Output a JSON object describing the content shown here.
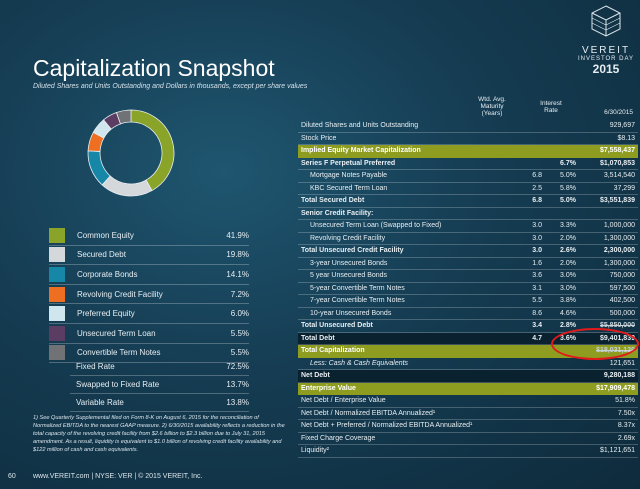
{
  "title": "Capitalization Snapshot",
  "subtitle": "Diluted Shares and Units Outstanding and Dollars in thousands, except per share values",
  "logo": {
    "name": "VEREIT",
    "sub": "INVESTOR DAY",
    "year": "2015"
  },
  "legend": [
    {
      "label": "Common Equity",
      "value": "41.9%",
      "color": "#8aa329",
      "pct": 41.9
    },
    {
      "label": "Secured Debt",
      "value": "19.8%",
      "color": "#d4d8db",
      "pct": 19.8
    },
    {
      "label": "Corporate Bonds",
      "value": "14.1%",
      "color": "#1787a8",
      "pct": 14.1
    },
    {
      "label": "Revolving Credit Facility",
      "value": "7.2%",
      "color": "#ee6f22",
      "pct": 7.2
    },
    {
      "label": "Preferred Equity",
      "value": "6.0%",
      "color": "#cfe6ef",
      "pct": 6.0
    },
    {
      "label": "Unsecured Term Loan",
      "value": "5.5%",
      "color": "#5b3c62",
      "pct": 5.5
    },
    {
      "label": "Convertible Term Notes",
      "value": "5.5%",
      "color": "#707275",
      "pct": 5.5
    }
  ],
  "rates": [
    {
      "label": "Fixed Rate",
      "value": "72.5%"
    },
    {
      "label": "Swapped to Fixed Rate",
      "value": "13.7%"
    },
    {
      "label": "Variable Rate",
      "value": "13.8%"
    }
  ],
  "footnote": "1) See Quarterly Supplemental filed on Form 8-K on August 6, 2015 for the reconciliation of Normalized EBITDA to the nearest GAAP measure. 2) 6/30/2015 availability reflects a reduction in the total capacity of the revolving credit facility from $2.6 billion to $2.3 billion due to July 31, 2015 amendment. As a result, liquidity is equivalent to $1.0 billion of revolving credit facility availability and $122 million of cash and cash equivalents.",
  "footer": {
    "page": "60",
    "text": "www.VEREIT.com  |  NYSE: VER  |  © 2015 VEREIT, Inc."
  },
  "headers": {
    "maturity": "Wtd. Avg. Maturity (Years)",
    "interest": "Interest Rate",
    "date": "6/30/2015"
  },
  "table": [
    {
      "label": "Diluted Shares and Units Outstanding",
      "m": "",
      "r": "",
      "v": "929,697",
      "cls": ""
    },
    {
      "label": "Stock Price",
      "m": "",
      "r": "",
      "v": "$8.13",
      "cls": ""
    },
    {
      "label": "Implied Equity Market Capitalization",
      "m": "",
      "r": "",
      "v": "$7,558,437",
      "cls": "hl"
    },
    {
      "label": "Series F Perpetual Preferred",
      "m": "",
      "r": "6.7%",
      "v": "$1,070,853",
      "cls": "b"
    },
    {
      "label": "Mortgage Notes Payable",
      "m": "6.8",
      "r": "5.0%",
      "v": "3,514,540",
      "cls": "ind"
    },
    {
      "label": "KBC Secured Term Loan",
      "m": "2.5",
      "r": "5.8%",
      "v": "37,299",
      "cls": "ind"
    },
    {
      "label": "Total Secured Debt",
      "m": "6.8",
      "r": "5.0%",
      "v": "$3,551,839",
      "cls": "b"
    },
    {
      "label": "Senior Credit Facility:",
      "m": "",
      "r": "",
      "v": "",
      "cls": "b"
    },
    {
      "label": "Unsecured Term Loan (Swapped to Fixed)",
      "m": "3.0",
      "r": "3.3%",
      "v": "1,000,000",
      "cls": "ind"
    },
    {
      "label": "Revolving Credit Facility",
      "m": "3.0",
      "r": "2.0%",
      "v": "1,300,000",
      "cls": "ind"
    },
    {
      "label": "Total Unsecured Credit Facility",
      "m": "3.0",
      "r": "2.6%",
      "v": "2,300,000",
      "cls": "b"
    },
    {
      "label": "3-year Unsecured Bonds",
      "m": "1.6",
      "r": "2.0%",
      "v": "1,300,000",
      "cls": "ind"
    },
    {
      "label": "5 year Unsecured Bonds",
      "m": "3.6",
      "r": "3.0%",
      "v": "750,000",
      "cls": "ind"
    },
    {
      "label": "5-year Convertible Term Notes",
      "m": "3.1",
      "r": "3.0%",
      "v": "597,500",
      "cls": "ind"
    },
    {
      "label": "7-year Convertible Term Notes",
      "m": "5.5",
      "r": "3.8%",
      "v": "402,500",
      "cls": "ind"
    },
    {
      "label": "10-year Unsecured Bonds",
      "m": "8.6",
      "r": "4.6%",
      "v": "500,000",
      "cls": "ind"
    },
    {
      "label": "Total Unsecured Debt",
      "m": "3.4",
      "r": "2.8%",
      "v": "$5,850,000",
      "cls": "b strikev"
    },
    {
      "label": "Total Debt",
      "m": "4.7",
      "r": "3.6%",
      "v": "$9,401,839",
      "cls": "b dk"
    },
    {
      "label": "Total Capitalization",
      "m": "",
      "r": "",
      "v": "$18,031,129",
      "cls": "hl strikev"
    },
    {
      "label": "Less: Cash & Cash Equivalents",
      "m": "",
      "r": "",
      "v": "121,651",
      "cls": "it"
    },
    {
      "label": "Net Debt",
      "m": "",
      "r": "",
      "v": "9,280,188",
      "cls": "b dk"
    },
    {
      "label": "Enterprise Value",
      "m": "",
      "r": "",
      "v": "$17,909,478",
      "cls": "hl"
    },
    {
      "label": "Net Debt / Enterprise Value",
      "m": "",
      "r": "",
      "v": "51.8%",
      "cls": ""
    },
    {
      "label": "Net Debt / Normalized EBITDA Annualized¹",
      "m": "",
      "r": "",
      "v": "7.50x",
      "cls": ""
    },
    {
      "label": "Net Debt + Preferred / Normalized EBITDA Annualized¹",
      "m": "",
      "r": "",
      "v": "8.37x",
      "cls": ""
    },
    {
      "label": "Fixed Charge Coverage",
      "m": "",
      "r": "",
      "v": "2.69x",
      "cls": ""
    },
    {
      "label": "Liquidity²",
      "m": "",
      "r": "",
      "v": "$1,121,651",
      "cls": ""
    }
  ]
}
